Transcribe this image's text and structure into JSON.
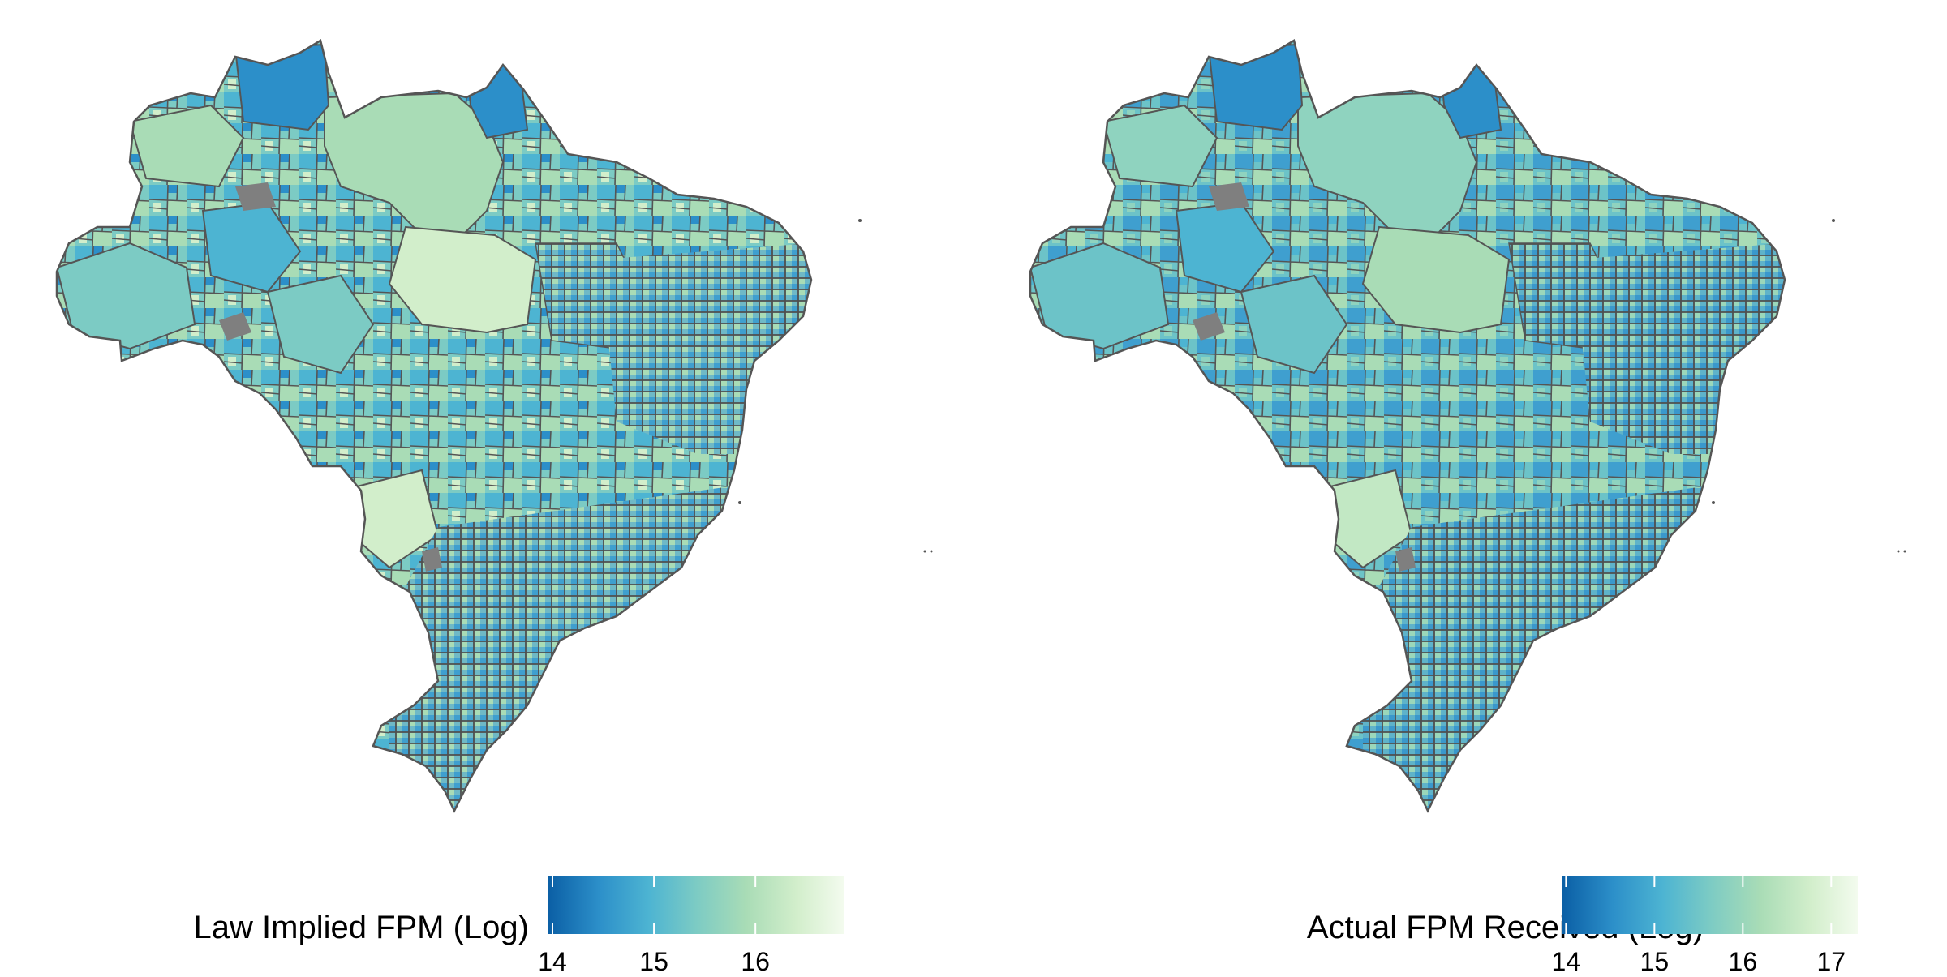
{
  "panels": [
    {
      "legend": {
        "title": "Law Implied FPM (Log)",
        "ticks": [
          "14",
          "15",
          "16"
        ],
        "tick_values": [
          14,
          15,
          16
        ],
        "range": [
          13.96,
          16.87
        ]
      }
    },
    {
      "legend": {
        "title": "Actual FPM Received (Log)",
        "ticks": [
          "14",
          "15",
          "16",
          "17"
        ],
        "tick_values": [
          14,
          15,
          16,
          17
        ],
        "range": [
          13.96,
          17.3
        ]
      }
    }
  ],
  "colors": {
    "scale": [
      "#0b5fa5",
      "#2c8fc9",
      "#4db4d2",
      "#7ccbc4",
      "#a9dcb6",
      "#d2eecb",
      "#f3fbee"
    ],
    "borders": "#555555",
    "missing": "#7f7f7f"
  }
}
